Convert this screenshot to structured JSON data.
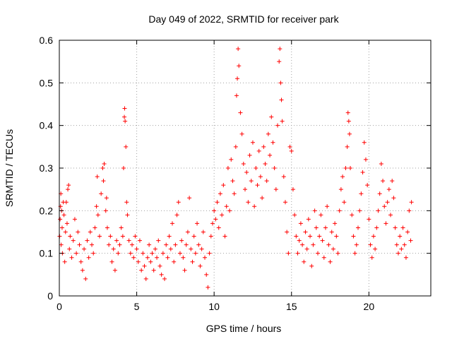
{
  "chart_data": {
    "type": "scatter",
    "title": "Day 049 of 2022, SRMTID for receiver park",
    "xlabel": "GPS time / hours",
    "ylabel": "SRMTID / TECUs",
    "xlim": [
      0,
      24
    ],
    "ylim": [
      0,
      0.6
    ],
    "xticks": [
      0,
      5,
      10,
      15,
      20
    ],
    "yticks": [
      0,
      0.1,
      0.2,
      0.3,
      0.4,
      0.5,
      0.6
    ],
    "xtick_labels": [
      "0",
      "5",
      "10",
      "15",
      "20"
    ],
    "ytick_labels": [
      "0",
      "0.1",
      "0.2",
      "0.3",
      "0.4",
      "0.5",
      "0.6"
    ],
    "grid": true,
    "marker": "+",
    "color": "#ff0000",
    "series": [
      {
        "name": "SRMTID",
        "points": [
          [
            0.02,
            0.14
          ],
          [
            0.05,
            0.18
          ],
          [
            0.08,
            0.21
          ],
          [
            0.1,
            0.24
          ],
          [
            0.12,
            0.12
          ],
          [
            0.15,
            0.2
          ],
          [
            0.18,
            0.16
          ],
          [
            0.2,
            0.1
          ],
          [
            0.25,
            0.22
          ],
          [
            0.3,
            0.19
          ],
          [
            0.35,
            0.08
          ],
          [
            0.4,
            0.15
          ],
          [
            0.45,
            0.22
          ],
          [
            0.5,
            0.17
          ],
          [
            0.55,
            0.25
          ],
          [
            0.6,
            0.26
          ],
          [
            0.65,
            0.11
          ],
          [
            0.7,
            0.14
          ],
          [
            0.8,
            0.09
          ],
          [
            0.9,
            0.13
          ],
          [
            1.0,
            0.18
          ],
          [
            1.1,
            0.1
          ],
          [
            1.2,
            0.15
          ],
          [
            1.3,
            0.12
          ],
          [
            1.4,
            0.08
          ],
          [
            1.5,
            0.06
          ],
          [
            1.6,
            0.11
          ],
          [
            1.7,
            0.04
          ],
          [
            1.8,
            0.13
          ],
          [
            1.9,
            0.09
          ],
          [
            2.0,
            0.15
          ],
          [
            2.1,
            0.12
          ],
          [
            2.2,
            0.1
          ],
          [
            2.3,
            0.16
          ],
          [
            2.4,
            0.21
          ],
          [
            2.45,
            0.28
          ],
          [
            2.5,
            0.19
          ],
          [
            2.6,
            0.14
          ],
          [
            2.7,
            0.24
          ],
          [
            2.8,
            0.3
          ],
          [
            2.85,
            0.27
          ],
          [
            2.9,
            0.31
          ],
          [
            3.0,
            0.2
          ],
          [
            3.05,
            0.23
          ],
          [
            3.1,
            0.16
          ],
          [
            3.2,
            0.12
          ],
          [
            3.3,
            0.14
          ],
          [
            3.4,
            0.08
          ],
          [
            3.5,
            0.11
          ],
          [
            3.6,
            0.06
          ],
          [
            3.7,
            0.13
          ],
          [
            3.8,
            0.1
          ],
          [
            3.9,
            0.12
          ],
          [
            4.0,
            0.16
          ],
          [
            4.1,
            0.14
          ],
          [
            4.15,
            0.3
          ],
          [
            4.2,
            0.42
          ],
          [
            4.22,
            0.44
          ],
          [
            4.25,
            0.41
          ],
          [
            4.3,
            0.35
          ],
          [
            4.35,
            0.22
          ],
          [
            4.4,
            0.19
          ],
          [
            4.5,
            0.13
          ],
          [
            4.6,
            0.1
          ],
          [
            4.7,
            0.12
          ],
          [
            4.8,
            0.09
          ],
          [
            4.9,
            0.14
          ],
          [
            5.0,
            0.11
          ],
          [
            5.1,
            0.08
          ],
          [
            5.2,
            0.13
          ],
          [
            5.3,
            0.06
          ],
          [
            5.4,
            0.1
          ],
          [
            5.5,
            0.07
          ],
          [
            5.6,
            0.04
          ],
          [
            5.7,
            0.09
          ],
          [
            5.8,
            0.12
          ],
          [
            5.9,
            0.08
          ],
          [
            6.0,
            0.1
          ],
          [
            6.1,
            0.06
          ],
          [
            6.2,
            0.11
          ],
          [
            6.3,
            0.09
          ],
          [
            6.4,
            0.13
          ],
          [
            6.5,
            0.07
          ],
          [
            6.6,
            0.05
          ],
          [
            6.7,
            0.1
          ],
          [
            6.8,
            0.04
          ],
          [
            6.9,
            0.12
          ],
          [
            7.0,
            0.09
          ],
          [
            7.1,
            0.14
          ],
          [
            7.2,
            0.11
          ],
          [
            7.3,
            0.17
          ],
          [
            7.4,
            0.08
          ],
          [
            7.5,
            0.12
          ],
          [
            7.6,
            0.19
          ],
          [
            7.7,
            0.22
          ],
          [
            7.8,
            0.1
          ],
          [
            7.9,
            0.13
          ],
          [
            8.0,
            0.09
          ],
          [
            8.1,
            0.06
          ],
          [
            8.2,
            0.12
          ],
          [
            8.3,
            0.15
          ],
          [
            8.4,
            0.23
          ],
          [
            8.5,
            0.11
          ],
          [
            8.6,
            0.08
          ],
          [
            8.7,
            0.14
          ],
          [
            8.8,
            0.1
          ],
          [
            8.9,
            0.17
          ],
          [
            9.0,
            0.12
          ],
          [
            9.1,
            0.07
          ],
          [
            9.2,
            0.11
          ],
          [
            9.3,
            0.15
          ],
          [
            9.4,
            0.09
          ],
          [
            9.5,
            0.05
          ],
          [
            9.6,
            0.02
          ],
          [
            9.7,
            0.1
          ],
          [
            9.8,
            0.14
          ],
          [
            9.9,
            0.17
          ],
          [
            10.0,
            0.2
          ],
          [
            10.1,
            0.18
          ],
          [
            10.2,
            0.22
          ],
          [
            10.3,
            0.16
          ],
          [
            10.4,
            0.24
          ],
          [
            10.5,
            0.19
          ],
          [
            10.6,
            0.26
          ],
          [
            10.7,
            0.14
          ],
          [
            10.8,
            0.21
          ],
          [
            10.9,
            0.3
          ],
          [
            11.0,
            0.2
          ],
          [
            11.1,
            0.32
          ],
          [
            11.2,
            0.27
          ],
          [
            11.3,
            0.24
          ],
          [
            11.4,
            0.35
          ],
          [
            11.45,
            0.47
          ],
          [
            11.5,
            0.51
          ],
          [
            11.55,
            0.58
          ],
          [
            11.6,
            0.54
          ],
          [
            11.7,
            0.43
          ],
          [
            11.8,
            0.38
          ],
          [
            11.9,
            0.31
          ],
          [
            12.0,
            0.25
          ],
          [
            12.1,
            0.29
          ],
          [
            12.2,
            0.22
          ],
          [
            12.3,
            0.33
          ],
          [
            12.4,
            0.27
          ],
          [
            12.5,
            0.36
          ],
          [
            12.6,
            0.21
          ],
          [
            12.7,
            0.3
          ],
          [
            12.8,
            0.26
          ],
          [
            12.9,
            0.34
          ],
          [
            13.0,
            0.28
          ],
          [
            13.1,
            0.23
          ],
          [
            13.2,
            0.35
          ],
          [
            13.3,
            0.31
          ],
          [
            13.4,
            0.27
          ],
          [
            13.5,
            0.38
          ],
          [
            13.6,
            0.33
          ],
          [
            13.7,
            0.42
          ],
          [
            13.8,
            0.36
          ],
          [
            13.9,
            0.3
          ],
          [
            14.0,
            0.25
          ],
          [
            14.1,
            0.4
          ],
          [
            14.2,
            0.55
          ],
          [
            14.25,
            0.58
          ],
          [
            14.3,
            0.5
          ],
          [
            14.35,
            0.46
          ],
          [
            14.4,
            0.41
          ],
          [
            14.5,
            0.28
          ],
          [
            14.6,
            0.22
          ],
          [
            14.7,
            0.15
          ],
          [
            14.8,
            0.1
          ],
          [
            14.9,
            0.35
          ],
          [
            15.0,
            0.34
          ],
          [
            15.1,
            0.25
          ],
          [
            15.2,
            0.19
          ],
          [
            15.3,
            0.14
          ],
          [
            15.4,
            0.1
          ],
          [
            15.5,
            0.13
          ],
          [
            15.6,
            0.17
          ],
          [
            15.7,
            0.12
          ],
          [
            15.8,
            0.08
          ],
          [
            15.9,
            0.15
          ],
          [
            16.0,
            0.11
          ],
          [
            16.1,
            0.18
          ],
          [
            16.2,
            0.14
          ],
          [
            16.3,
            0.07
          ],
          [
            16.4,
            0.12
          ],
          [
            16.5,
            0.2
          ],
          [
            16.6,
            0.16
          ],
          [
            16.7,
            0.1
          ],
          [
            16.8,
            0.14
          ],
          [
            16.9,
            0.19
          ],
          [
            17.0,
            0.13
          ],
          [
            17.1,
            0.09
          ],
          [
            17.2,
            0.16
          ],
          [
            17.3,
            0.21
          ],
          [
            17.4,
            0.12
          ],
          [
            17.5,
            0.08
          ],
          [
            17.6,
            0.15
          ],
          [
            17.7,
            0.11
          ],
          [
            17.8,
            0.17
          ],
          [
            17.9,
            0.14
          ],
          [
            18.0,
            0.1
          ],
          [
            18.1,
            0.2
          ],
          [
            18.2,
            0.25
          ],
          [
            18.3,
            0.28
          ],
          [
            18.4,
            0.22
          ],
          [
            18.5,
            0.3
          ],
          [
            18.6,
            0.35
          ],
          [
            18.65,
            0.43
          ],
          [
            18.7,
            0.41
          ],
          [
            18.75,
            0.38
          ],
          [
            18.8,
            0.3
          ],
          [
            18.9,
            0.19
          ],
          [
            19.0,
            0.14
          ],
          [
            19.1,
            0.1
          ],
          [
            19.2,
            0.12
          ],
          [
            19.3,
            0.16
          ],
          [
            19.4,
            0.2
          ],
          [
            19.5,
            0.24
          ],
          [
            19.6,
            0.29
          ],
          [
            19.7,
            0.36
          ],
          [
            19.8,
            0.32
          ],
          [
            19.9,
            0.26
          ],
          [
            20.0,
            0.18
          ],
          [
            20.1,
            0.12
          ],
          [
            20.2,
            0.09
          ],
          [
            20.3,
            0.14
          ],
          [
            20.4,
            0.11
          ],
          [
            20.5,
            0.16
          ],
          [
            20.6,
            0.2
          ],
          [
            20.7,
            0.24
          ],
          [
            20.8,
            0.31
          ],
          [
            20.9,
            0.27
          ],
          [
            21.0,
            0.21
          ],
          [
            21.1,
            0.17
          ],
          [
            21.2,
            0.22
          ],
          [
            21.3,
            0.25
          ],
          [
            21.4,
            0.19
          ],
          [
            21.5,
            0.27
          ],
          [
            21.6,
            0.23
          ],
          [
            21.7,
            0.16
          ],
          [
            21.8,
            0.12
          ],
          [
            21.9,
            0.1
          ],
          [
            22.0,
            0.14
          ],
          [
            22.1,
            0.11
          ],
          [
            22.2,
            0.16
          ],
          [
            22.3,
            0.12
          ],
          [
            22.4,
            0.09
          ],
          [
            22.5,
            0.15
          ],
          [
            22.6,
            0.2
          ],
          [
            22.7,
            0.13
          ],
          [
            22.75,
            0.22
          ]
        ]
      }
    ]
  }
}
